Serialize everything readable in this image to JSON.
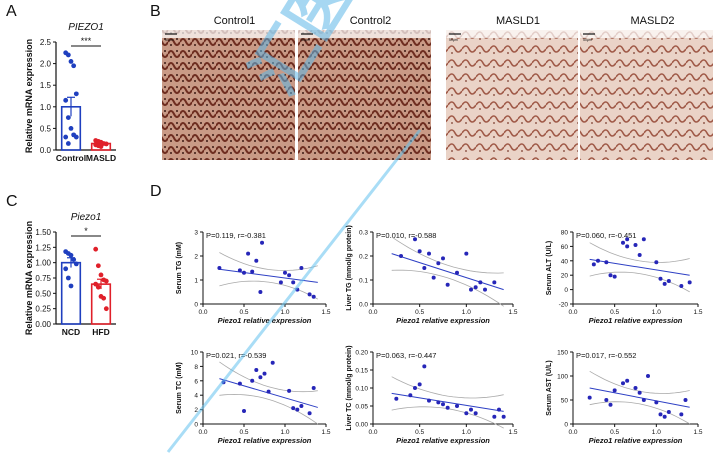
{
  "panels": {
    "A": "A",
    "B": "B",
    "C": "C",
    "D": "D"
  },
  "panelA": {
    "title": "PIEZO1",
    "ylabel": "Relative mRNA expression",
    "yticks": [
      "0.0",
      "0.5",
      "1.0",
      "1.5",
      "2.0",
      "2.5"
    ],
    "categories": [
      "Control",
      "MASLD"
    ],
    "sig": "***",
    "colors": [
      "#1f3fbf",
      "#e0202a"
    ]
  },
  "panelB": {
    "titles": [
      "Control1",
      "Control2",
      "MASLD1",
      "MASLD2"
    ],
    "scalebar": "50μm"
  },
  "panelC": {
    "title": "Piezo1",
    "ylabel": "Relative mRNA expression",
    "yticks": [
      "0.00",
      "0.25",
      "0.50",
      "0.75",
      "1.00",
      "1.25",
      "1.50"
    ],
    "categories": [
      "NCD",
      "HFD"
    ],
    "sig": "*",
    "colors": [
      "#1f3fbf",
      "#e0202a"
    ]
  },
  "panelD": {
    "xlabel": "Piezo1 relative expression",
    "plots": [
      {
        "ylabel": "Serum TG (mM)",
        "stat": "P=0.119, r=-0.381",
        "yticks": [
          "0",
          "1",
          "2",
          "3"
        ],
        "xticks": [
          "0.0",
          "0.5",
          "1.0",
          "1.5"
        ]
      },
      {
        "ylabel": "Liver TG (mmol/g protein)",
        "stat": "P=0.010, r=-0.588",
        "yticks": [
          "0.0",
          "0.1",
          "0.2",
          "0.3"
        ],
        "xticks": [
          "0.0",
          "0.5",
          "1.0",
          "1.5"
        ]
      },
      {
        "ylabel": "Serum ALT (U/L)",
        "stat": "P=0.060, r=-0.451",
        "yticks": [
          "-20",
          "0",
          "20",
          "40",
          "60",
          "80"
        ],
        "xticks": [
          "0.0",
          "0.5",
          "1.0",
          "1.5"
        ]
      },
      {
        "ylabel": "Serum TC (mM)",
        "stat": "P=0.021, r=-0.539",
        "yticks": [
          "0",
          "2",
          "4",
          "6",
          "8",
          "10"
        ],
        "xticks": [
          "0.0",
          "0.5",
          "1.0",
          "1.5"
        ]
      },
      {
        "ylabel": "Liver TC (mmol/g protein)",
        "stat": "P=0.063, r=-0.447",
        "yticks": [
          "0.00",
          "0.05",
          "0.10",
          "0.15",
          "0.20"
        ],
        "xticks": [
          "0.0",
          "0.5",
          "1.0",
          "1.5"
        ]
      },
      {
        "ylabel": "Serum AST (U/L)",
        "stat": "P=0.017, r=-0.552",
        "yticks": [
          "0",
          "50",
          "100",
          "150"
        ],
        "xticks": [
          "0.0",
          "0.5",
          "1.0",
          "1.5"
        ]
      }
    ]
  },
  "watermark": "汇医资讯",
  "chart_data": [
    {
      "type": "bar",
      "title": "PIEZO1",
      "ylabel": "Relative mRNA expression",
      "ylim": [
        0,
        2.5
      ],
      "categories": [
        "Control",
        "MASLD"
      ],
      "values": [
        1.0,
        0.15
      ],
      "errors": [
        0.22,
        0.03
      ],
      "points": [
        [
          2.25,
          2.2,
          2.05,
          1.95,
          1.3,
          1.15,
          0.75,
          0.5,
          0.35,
          0.3,
          0.3,
          0.15
        ],
        [
          0.22,
          0.2,
          0.18,
          0.15,
          0.14,
          0.12,
          0.1,
          0.08
        ]
      ]
    },
    {
      "type": "bar",
      "title": "Piezo1",
      "ylabel": "Relative mRNA expression",
      "ylim": [
        0,
        1.5
      ],
      "categories": [
        "NCD",
        "HFD"
      ],
      "values": [
        1.0,
        0.65
      ],
      "errors": [
        0.08,
        0.08
      ],
      "points": [
        [
          1.18,
          1.15,
          1.12,
          1.05,
          0.98,
          0.9,
          0.75,
          0.62
        ],
        [
          1.22,
          0.95,
          0.8,
          0.72,
          0.7,
          0.65,
          0.6,
          0.45,
          0.42,
          0.25
        ]
      ]
    },
    {
      "type": "scatter",
      "ylabel": "Serum TG (mM)",
      "xlim": [
        0,
        1.5
      ],
      "ylim": [
        0,
        3
      ],
      "fit": [
        [
          0.2,
          1.45
        ],
        [
          1.4,
          0.9
        ]
      ],
      "points": [
        [
          0.2,
          1.5
        ],
        [
          0.45,
          1.4
        ],
        [
          0.5,
          1.3
        ],
        [
          0.6,
          1.35
        ],
        [
          0.55,
          2.1
        ],
        [
          0.65,
          1.8
        ],
        [
          0.7,
          0.5
        ],
        [
          0.72,
          2.55
        ],
        [
          0.95,
          0.9
        ],
        [
          1.0,
          1.3
        ],
        [
          1.05,
          1.2
        ],
        [
          1.1,
          0.9
        ],
        [
          1.15,
          0.6
        ],
        [
          1.2,
          1.5
        ],
        [
          1.3,
          0.4
        ],
        [
          1.35,
          0.3
        ]
      ]
    },
    {
      "type": "scatter",
      "ylabel": "Liver TG (mmol/g protein)",
      "xlim": [
        0,
        1.5
      ],
      "ylim": [
        0,
        0.3
      ],
      "fit": [
        [
          0.2,
          0.21
        ],
        [
          1.4,
          0.06
        ]
      ],
      "points": [
        [
          0.3,
          0.2
        ],
        [
          0.45,
          0.27
        ],
        [
          0.5,
          0.22
        ],
        [
          0.55,
          0.15
        ],
        [
          0.6,
          0.21
        ],
        [
          0.65,
          0.11
        ],
        [
          0.7,
          0.17
        ],
        [
          0.75,
          0.19
        ],
        [
          0.8,
          0.08
        ],
        [
          0.9,
          0.13
        ],
        [
          1.0,
          0.21
        ],
        [
          1.05,
          0.06
        ],
        [
          1.1,
          0.07
        ],
        [
          1.15,
          0.09
        ],
        [
          1.2,
          0.06
        ],
        [
          1.3,
          0.09
        ]
      ]
    },
    {
      "type": "scatter",
      "ylabel": "Serum ALT (U/L)",
      "xlim": [
        0,
        1.5
      ],
      "ylim": [
        -20,
        80
      ],
      "fit": [
        [
          0.2,
          42
        ],
        [
          1.4,
          20
        ]
      ],
      "points": [
        [
          0.25,
          35
        ],
        [
          0.3,
          40
        ],
        [
          0.4,
          38
        ],
        [
          0.45,
          20
        ],
        [
          0.5,
          18
        ],
        [
          0.6,
          65
        ],
        [
          0.65,
          70
        ],
        [
          0.65,
          60
        ],
        [
          0.75,
          62
        ],
        [
          0.8,
          48
        ],
        [
          0.85,
          70
        ],
        [
          1.0,
          38
        ],
        [
          1.05,
          15
        ],
        [
          1.1,
          8
        ],
        [
          1.15,
          12
        ],
        [
          1.3,
          5
        ],
        [
          1.4,
          10
        ]
      ]
    },
    {
      "type": "scatter",
      "ylabel": "Serum TC (mM)",
      "xlim": [
        0,
        1.5
      ],
      "ylim": [
        0,
        10
      ],
      "fit": [
        [
          0.2,
          6.3
        ],
        [
          1.4,
          2.3
        ]
      ],
      "points": [
        [
          0.25,
          5.8
        ],
        [
          0.45,
          5.6
        ],
        [
          0.5,
          1.8
        ],
        [
          0.6,
          6.0
        ],
        [
          0.65,
          7.5
        ],
        [
          0.7,
          6.5
        ],
        [
          0.75,
          7.0
        ],
        [
          0.8,
          4.5
        ],
        [
          0.85,
          8.5
        ],
        [
          1.05,
          4.6
        ],
        [
          1.1,
          2.2
        ],
        [
          1.15,
          2.0
        ],
        [
          1.2,
          2.5
        ],
        [
          1.35,
          5.0
        ],
        [
          1.3,
          1.5
        ]
      ]
    },
    {
      "type": "scatter",
      "ylabel": "Liver TC (mmol/g protein)",
      "xlim": [
        0,
        1.5
      ],
      "ylim": [
        0,
        0.2
      ],
      "fit": [
        [
          0.2,
          0.085
        ],
        [
          1.4,
          0.035
        ]
      ],
      "points": [
        [
          0.25,
          0.07
        ],
        [
          0.4,
          0.08
        ],
        [
          0.45,
          0.1
        ],
        [
          0.5,
          0.11
        ],
        [
          0.55,
          0.16
        ],
        [
          0.6,
          0.065
        ],
        [
          0.7,
          0.06
        ],
        [
          0.75,
          0.055
        ],
        [
          0.8,
          0.045
        ],
        [
          0.9,
          0.05
        ],
        [
          1.0,
          0.03
        ],
        [
          1.05,
          0.04
        ],
        [
          1.1,
          0.03
        ],
        [
          1.3,
          0.02
        ],
        [
          1.35,
          0.04
        ],
        [
          1.4,
          0.02
        ]
      ]
    },
    {
      "type": "scatter",
      "ylabel": "Serum AST (U/L)",
      "xlim": [
        0,
        1.5
      ],
      "ylim": [
        0,
        150
      ],
      "fit": [
        [
          0.2,
          75
        ],
        [
          1.4,
          35
        ]
      ],
      "points": [
        [
          0.2,
          55
        ],
        [
          0.4,
          50
        ],
        [
          0.45,
          40
        ],
        [
          0.5,
          70
        ],
        [
          0.6,
          85
        ],
        [
          0.65,
          90
        ],
        [
          0.75,
          75
        ],
        [
          0.8,
          65
        ],
        [
          0.85,
          50
        ],
        [
          0.9,
          100
        ],
        [
          1.0,
          45
        ],
        [
          1.05,
          20
        ],
        [
          1.1,
          15
        ],
        [
          1.15,
          25
        ],
        [
          1.3,
          20
        ],
        [
          1.35,
          50
        ]
      ]
    }
  ]
}
